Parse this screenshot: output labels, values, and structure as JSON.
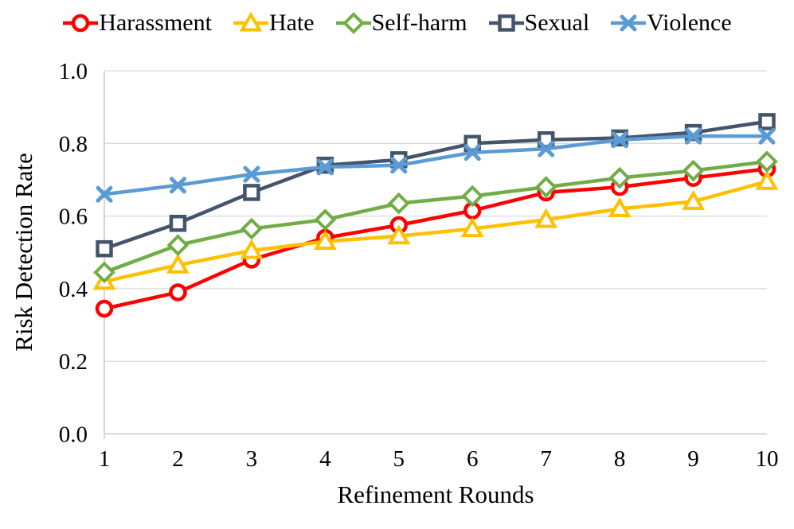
{
  "chart_data": {
    "type": "line",
    "title": "",
    "xlabel": "Refinement Rounds",
    "ylabel": "Risk Detection Rate",
    "x": [
      1,
      2,
      3,
      4,
      5,
      6,
      7,
      8,
      9,
      10
    ],
    "ylim": [
      0.0,
      1.0
    ],
    "y_ticks": [
      0.0,
      0.2,
      0.4,
      0.6,
      0.8,
      1.0
    ],
    "y_tick_labels": [
      "0.0",
      "0.2",
      "0.4",
      "0.6",
      "0.8",
      "1.0"
    ],
    "grid": "horizontal",
    "legend_position": "top",
    "colors": {
      "grid_line": "#D9D9D9",
      "axis_line": "#BFBFBF",
      "text": "#000000"
    },
    "series": [
      {
        "name": "Harassment",
        "color": "#FF0000",
        "marker": "circle",
        "values": [
          0.345,
          0.39,
          0.48,
          0.54,
          0.575,
          0.615,
          0.665,
          0.68,
          0.705,
          0.73
        ]
      },
      {
        "name": "Hate",
        "color": "#FFC000",
        "marker": "triangle",
        "values": [
          0.42,
          0.465,
          0.505,
          0.53,
          0.545,
          0.565,
          0.59,
          0.62,
          0.64,
          0.695
        ]
      },
      {
        "name": "Self-harm",
        "color": "#70AD47",
        "marker": "diamond",
        "values": [
          0.445,
          0.52,
          0.565,
          0.59,
          0.635,
          0.655,
          0.68,
          0.705,
          0.725,
          0.75
        ]
      },
      {
        "name": "Sexual",
        "color": "#44546A",
        "marker": "square",
        "values": [
          0.51,
          0.58,
          0.665,
          0.74,
          0.755,
          0.8,
          0.81,
          0.815,
          0.83,
          0.86
        ]
      },
      {
        "name": "Violence",
        "color": "#5B9BD5",
        "marker": "x",
        "values": [
          0.66,
          0.685,
          0.715,
          0.735,
          0.74,
          0.775,
          0.785,
          0.81,
          0.82,
          0.82
        ]
      }
    ]
  }
}
